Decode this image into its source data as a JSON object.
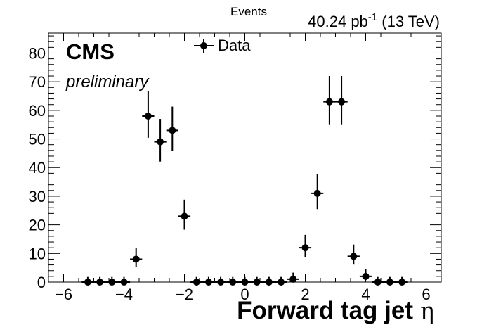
{
  "chart_data": {
    "type": "scatter",
    "title": "",
    "ylabel": "Events",
    "xlabel_main": "Forward tag jet",
    "xlabel_symbol": "η",
    "lumi_value": "40.24 pb",
    "lumi_exponent": "-1",
    "lumi_energy": " (13 TeV)",
    "cms_label": "CMS",
    "prelim_label": "preliminary",
    "xlim": [
      -6.5,
      6.5
    ],
    "ylim": [
      0,
      87
    ],
    "x_ticks": [
      -6,
      -4,
      -2,
      0,
      2,
      4,
      6
    ],
    "x_tick_labels": [
      "−6",
      "−4",
      "−2",
      "0",
      "2",
      "4",
      "6"
    ],
    "y_ticks": [
      0,
      10,
      20,
      30,
      40,
      50,
      60,
      70,
      80
    ],
    "y_tick_labels": [
      "0",
      "10",
      "20",
      "30",
      "40",
      "50",
      "60",
      "70",
      "80"
    ],
    "legend_position": "top-center",
    "series": [
      {
        "name": "Data",
        "color": "#000000",
        "bin_half_width": 0.2,
        "x": [
          -5.2,
          -4.8,
          -4.4,
          -4.0,
          -3.6,
          -3.2,
          -2.8,
          -2.4,
          -2.0,
          -1.6,
          -1.2,
          -0.8,
          -0.4,
          0.0,
          0.4,
          0.8,
          1.2,
          1.6,
          2.0,
          2.4,
          2.8,
          3.2,
          3.6,
          4.0,
          4.4,
          4.8,
          5.2
        ],
        "y": [
          0,
          0,
          0,
          0,
          8,
          58,
          49,
          53,
          23,
          0,
          0,
          0,
          0,
          0,
          0,
          0,
          0,
          1,
          12,
          31,
          63,
          63,
          9,
          2,
          0,
          0,
          0
        ],
        "err_up": [
          1.8,
          1.8,
          1.8,
          1.8,
          4.0,
          8.7,
          8.0,
          8.3,
          5.8,
          1.8,
          1.8,
          1.8,
          1.8,
          1.8,
          1.8,
          1.8,
          1.8,
          2.3,
          4.5,
          6.6,
          9.0,
          9.0,
          4.1,
          2.6,
          1.8,
          1.8,
          1.8
        ],
        "err_down": [
          0,
          0,
          0,
          0,
          2.8,
          7.6,
          6.9,
          7.2,
          4.7,
          0,
          0,
          0,
          0,
          0,
          0,
          0,
          0,
          0.8,
          3.4,
          5.5,
          7.9,
          7.9,
          2.9,
          1.3,
          0,
          0,
          0
        ]
      }
    ]
  }
}
